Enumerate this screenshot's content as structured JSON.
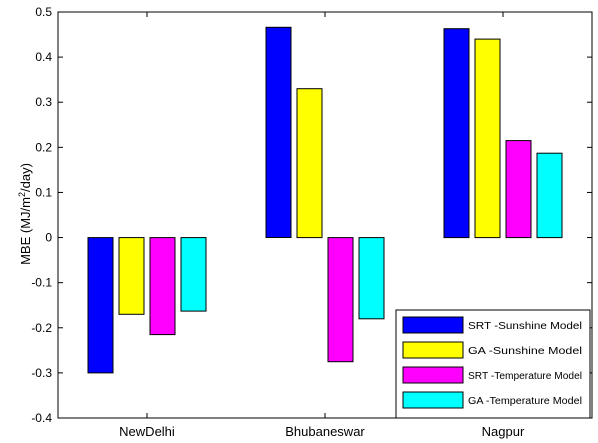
{
  "chart_data": {
    "type": "bar",
    "categories": [
      "NewDelhi",
      "Bhubaneswar",
      "Nagpur"
    ],
    "series": [
      {
        "name": "SRT -Sunshine Model",
        "color": "#0000ff",
        "values": [
          -0.3,
          0.466,
          0.463
        ]
      },
      {
        "name": "GA -Sunshine Model",
        "color": "#ffff00",
        "values": [
          -0.17,
          0.33,
          0.44
        ]
      },
      {
        "name": "SRT -Temperature Model",
        "color": "#ff00ff",
        "values": [
          -0.215,
          -0.275,
          0.215
        ]
      },
      {
        "name": "GA -Temperature Model",
        "color": "#00ffff",
        "values": [
          -0.163,
          -0.18,
          0.187
        ]
      }
    ],
    "ylabel": "MBE (MJ/m²/day)",
    "ylabel_parts": [
      "MBE (MJ/m",
      "2",
      "/day)"
    ],
    "ylim": [
      -0.4,
      0.5
    ],
    "yticks": [
      -0.4,
      -0.3,
      -0.2,
      -0.1,
      0,
      0.1,
      0.2,
      0.3,
      0.4,
      0.5
    ],
    "ytick_labels": [
      "-0.4",
      "-0.3",
      "-0.2",
      "-0.1",
      "0",
      "0.1",
      "0.2",
      "0.3",
      "0.4",
      "0.5"
    ],
    "grid": false,
    "legend_position": "bottom-right"
  }
}
